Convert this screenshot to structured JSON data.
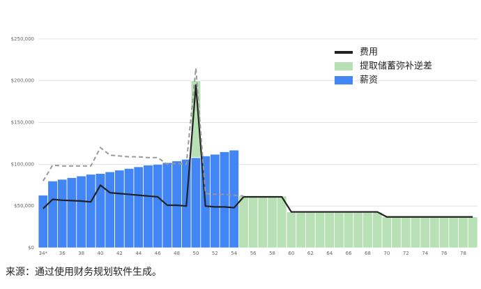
{
  "chart_data": {
    "type": "bar",
    "categories": [
      "34*",
      null,
      "36",
      null,
      "38",
      null,
      "40",
      null,
      "42",
      null,
      "44",
      null,
      "46",
      null,
      "48",
      null,
      "50",
      null,
      "52",
      null,
      "54",
      null,
      "56",
      null,
      "58",
      null,
      "60",
      null,
      "62",
      null,
      "64",
      null,
      "66",
      null,
      "68",
      null,
      "70",
      null,
      "72",
      null,
      "74",
      null,
      "76",
      null,
      "78",
      null
    ],
    "series": [
      {
        "name": "费用",
        "kind": "line",
        "color": "#222222",
        "values": [
          47000,
          58000,
          57000,
          56500,
          56000,
          55000,
          75000,
          66000,
          65000,
          64000,
          63000,
          62000,
          61000,
          51000,
          51000,
          50000,
          195000,
          50000,
          49000,
          49000,
          48000,
          61000,
          61000,
          61000,
          61000,
          61000,
          43000,
          43000,
          43000,
          43000,
          43000,
          43000,
          43000,
          43000,
          43000,
          43000,
          37000,
          37000,
          37000,
          37000,
          37000,
          37000,
          37000,
          37000,
          37000,
          37000
        ]
      },
      {
        "kind": "line",
        "dashed": true,
        "color": "#999999",
        "values": [
          80000,
          99000,
          98000,
          98000,
          98000,
          98000,
          120000,
          111000,
          110000,
          109000,
          109000,
          108000,
          108000,
          100000,
          101000,
          100000,
          215000,
          65000,
          64000,
          64000,
          63000,
          62000,
          null,
          null,
          null,
          null,
          null,
          null,
          null,
          null,
          null,
          null,
          null,
          null,
          null,
          null,
          null,
          null,
          null,
          null,
          null,
          null,
          null,
          null,
          null,
          null
        ]
      },
      {
        "name": "提取储蓄弥补逆差",
        "kind": "bar",
        "color": "#b7e1b5",
        "values": [
          0,
          0,
          0,
          0,
          0,
          0,
          0,
          0,
          0,
          0,
          0,
          0,
          0,
          0,
          0,
          0,
          92000,
          0,
          0,
          0,
          0,
          62000,
          62000,
          62000,
          62000,
          62000,
          43000,
          43000,
          43000,
          43000,
          43000,
          43000,
          43000,
          43000,
          43000,
          43000,
          37000,
          37000,
          37000,
          37000,
          37000,
          37000,
          37000,
          37000,
          37000,
          37000
        ]
      },
      {
        "name": "薪资",
        "kind": "bar",
        "color": "#4285f4",
        "values": [
          63000,
          80000,
          82000,
          84000,
          86000,
          88000,
          89000,
          91000,
          93000,
          95000,
          97000,
          99000,
          100000,
          102000,
          104000,
          106000,
          108000,
          110000,
          112000,
          115000,
          117000,
          0,
          0,
          0,
          0,
          0,
          0,
          0,
          0,
          0,
          0,
          0,
          0,
          0,
          0,
          0,
          0,
          0,
          0,
          0,
          0,
          0,
          0,
          0,
          0,
          0
        ]
      }
    ],
    "ylim": [
      0,
      280000
    ],
    "yticks": [
      {
        "value": 0,
        "label": "$0"
      },
      {
        "value": 50000,
        "label": "$50,000"
      },
      {
        "value": 100000,
        "label": "$100,000"
      },
      {
        "value": 150000,
        "label": "$150,000"
      },
      {
        "value": 200000,
        "label": "$200,000"
      },
      {
        "value": 250000,
        "label": "$250,000"
      }
    ],
    "grid": true,
    "legend": "top-right"
  },
  "caption": "来源：通过使用财务规划软件生成。"
}
